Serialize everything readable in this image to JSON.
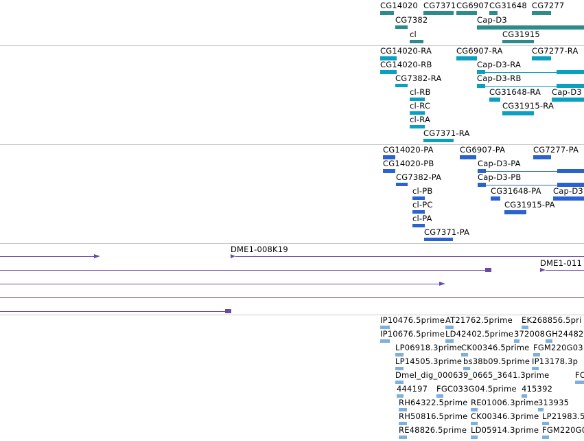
{
  "colors": {
    "gene": "#2e8b8b",
    "transcript": "#0aa0c0",
    "protein": "#2a62d0",
    "clone": "#6a4aa8",
    "est": "#7fb0dd",
    "divider": "#c8c8c8"
  },
  "tracks": {
    "gene": {
      "labels": [
        "CG14020",
        "CG7371",
        "CG6907",
        "CG31648",
        "CG7277",
        "CG7382",
        "Cap-D3",
        "cl",
        "CG31915"
      ]
    },
    "transcript": {
      "labels": [
        "CG14020-RA",
        "CG6907-RA",
        "CG7277-RA",
        "CG14020-RB",
        "Cap-D3-RA",
        "CG7382-RA",
        "Cap-D3-RB",
        "cl-RB",
        "CG31648-RA",
        "Cap-D3",
        "cl-RC",
        "CG31915-RA",
        "cl-RA",
        "CG7371-RA"
      ]
    },
    "protein": {
      "labels": [
        "CG14020-PA",
        "CG6907-PA",
        "CG7277-PA",
        "CG14020-PB",
        "Cap-D3-PA",
        "CG7382-PA",
        "Cap-D3-PB",
        "cl-PB",
        "CG31648-PA",
        "Cap-D3",
        "cl-PC",
        "CG31915-PA",
        "cl-PA",
        "CG7371-PA"
      ]
    },
    "clone": {
      "labels": [
        "DME1-008K19",
        "DME1-011"
      ]
    },
    "est": {
      "labels": [
        "IP10476.5prime",
        "AT21762.5prime",
        "EK268856.5pri",
        "IP10676.5prime",
        "LD42402.5prime",
        "372008",
        "GH24482",
        "LP06918.3prime",
        "CK00346.5prime",
        "FGM220G03.",
        "LP14505.3prime",
        "bs38b09.5prime",
        "IP13178.3p",
        "Dmel_dig_000639_0665_3641.3prime",
        "FC",
        "444197",
        "FGC033G04.5prime",
        "415392",
        "RH64322.5prime",
        "RE01006.3prime",
        "313935",
        "RH50816.5prime",
        "CK00346.3prime",
        "LP21983.5",
        "RE48826.5prime",
        "LD05914.3prime",
        "FGM220G0"
      ]
    }
  }
}
